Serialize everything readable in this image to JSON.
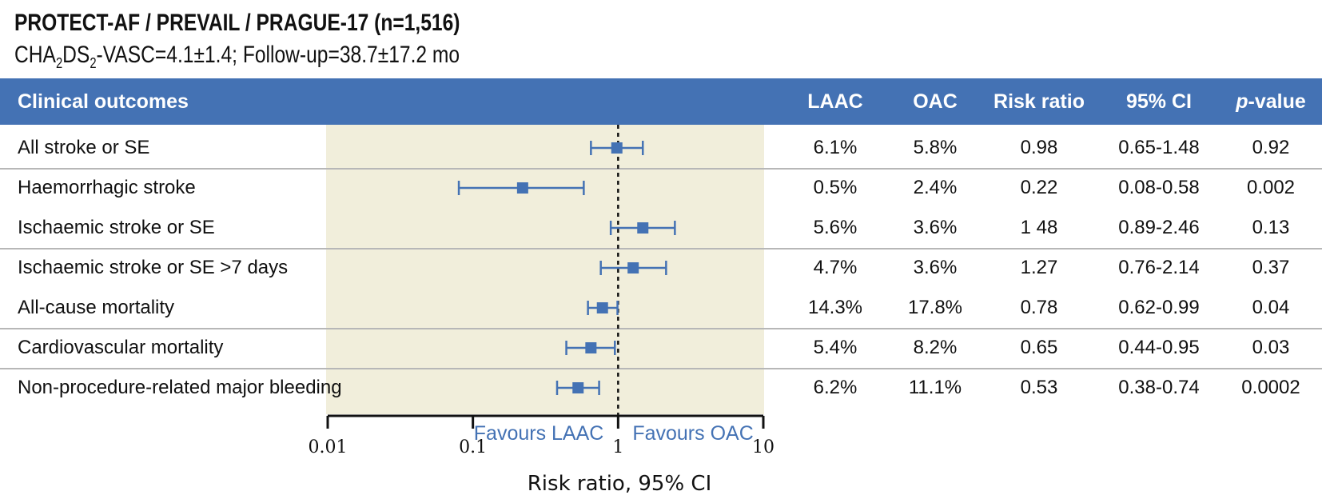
{
  "header": {
    "title": "PROTECT-AF / PREVAIL / PRAGUE-17 (n=1,516)",
    "subtitle_pre": "CHA",
    "subtitle_sub1": "2",
    "subtitle_mid": "DS",
    "subtitle_sub2": "2",
    "subtitle_post": "-VASC=4.1±1.4; Follow-up=38.7±17.2 mo"
  },
  "columns": {
    "outcome": "Clinical outcomes",
    "laac": "LAAC",
    "oac": "OAC",
    "rr": "Risk ratio",
    "ci": "95% CI",
    "p_italic": "p",
    "p_rest": "-value"
  },
  "rows": [
    {
      "label": "All stroke or SE",
      "laac": "6.1%",
      "oac": "5.8%",
      "rr": "0.98",
      "ci": "0.65-1.48",
      "p": "0.92"
    },
    {
      "label": "Haemorrhagic stroke",
      "laac": "0.5%",
      "oac": "2.4%",
      "rr": "0.22",
      "ci": "0.08-0.58",
      "p": "0.002"
    },
    {
      "label": "Ischaemic stroke or SE",
      "laac": "5.6%",
      "oac": "3.6%",
      "rr": "1 48",
      "ci": "0.89-2.46",
      "p": "0.13"
    },
    {
      "label": "Ischaemic stroke or SE >7 days",
      "laac": "4.7%",
      "oac": "3.6%",
      "rr": "1.27",
      "ci": "0.76-2.14",
      "p": "0.37"
    },
    {
      "label": "All-cause mortality",
      "laac": "14.3%",
      "oac": "17.8%",
      "rr": "0.78",
      "ci": "0.62-0.99",
      "p": "0.04"
    },
    {
      "label": "Cardiovascular mortality",
      "laac": "5.4%",
      "oac": "8.2%",
      "rr": "0.65",
      "ci": "0.44-0.95",
      "p": "0.03"
    },
    {
      "label": "Non-procedure-related major bleeding",
      "laac": "6.2%",
      "oac": "11.1%",
      "rr": "0.53",
      "ci": "0.38-0.74",
      "p": "0.0002"
    }
  ],
  "chart_data": {
    "type": "forest",
    "scale": "log",
    "xlim": [
      0.01,
      10
    ],
    "reference_line": 1,
    "ticks": [
      "0.01",
      "0.1",
      "1",
      "10"
    ],
    "xlabel": "Risk ratio, 95% CI",
    "favours_left": "Favours LAAC",
    "favours_right": "Favours OAC",
    "points": [
      {
        "name": "All stroke or SE",
        "est": 0.98,
        "lo": 0.65,
        "hi": 1.48
      },
      {
        "name": "Haemorrhagic stroke",
        "est": 0.22,
        "lo": 0.08,
        "hi": 0.58
      },
      {
        "name": "Ischaemic stroke or SE",
        "est": 1.48,
        "lo": 0.89,
        "hi": 2.46
      },
      {
        "name": "Ischaemic stroke or SE >7 days",
        "est": 1.27,
        "lo": 0.76,
        "hi": 2.14
      },
      {
        "name": "All-cause mortality",
        "est": 0.78,
        "lo": 0.62,
        "hi": 0.99
      },
      {
        "name": "Cardiovascular mortality",
        "est": 0.65,
        "lo": 0.44,
        "hi": 0.95
      },
      {
        "name": "Non-procedure-related major bleeding",
        "est": 0.53,
        "lo": 0.38,
        "hi": 0.74
      }
    ]
  },
  "colors": {
    "header_bg": "#4472b4",
    "marker": "#4472b4",
    "band": "#f1eedb",
    "divider": "#b7b7b7"
  }
}
